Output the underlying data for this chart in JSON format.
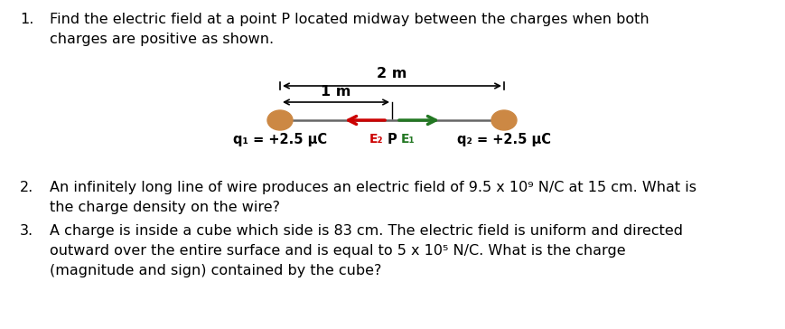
{
  "background_color": "#ffffff",
  "font_size": 11.5,
  "diagram": {
    "charge_color": "#CC8844",
    "E2_color": "#cc0000",
    "E1_color": "#227722",
    "line_color": "#666666",
    "bracket_color": "#000000"
  },
  "q1_line1": "Find the electric field at a point P located midway between the charges when both",
  "q1_line2": "charges are positive as shown.",
  "q2_line1": "An infinitely long line of wire produces an electric field of 9.5 x 10⁹ N/C at 15 cm. What is",
  "q2_line2": "the charge density on the wire?",
  "q3_line1": "A charge is inside a cube which side is 83 cm. The electric field is uniform and directed",
  "q3_line2": "outward over the entire surface and is equal to 5 x 10⁵ N/C. What is the charge",
  "q3_line3": "(magnitude and sign) contained by the cube?",
  "label_q1": "q₁ = +2.5 μC",
  "label_q2": "q₂ = +2.5 μC",
  "label_E2": "E₂",
  "label_E1": "E₁",
  "label_P": "P",
  "label_2m": "2 m",
  "label_1m": "1 m"
}
